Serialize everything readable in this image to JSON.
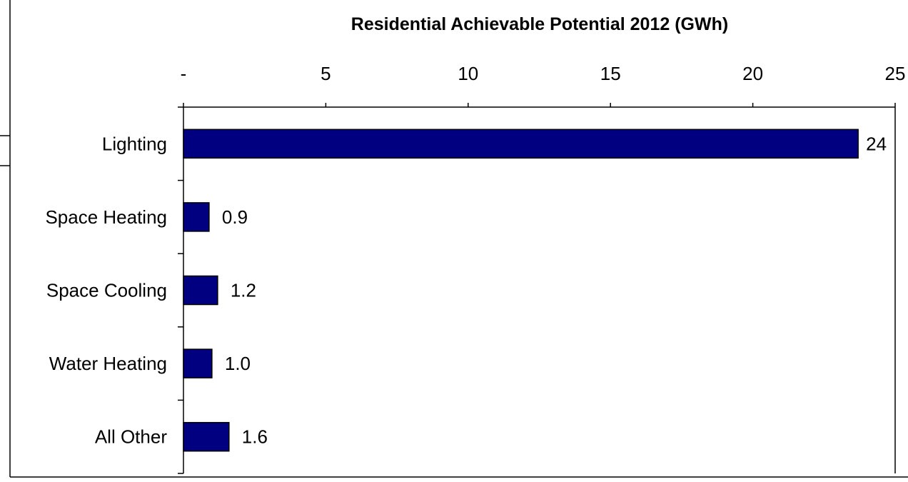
{
  "chart_data": {
    "type": "bar",
    "orientation": "horizontal",
    "title": "Residential Achievable Potential 2012 (GWh)",
    "xlabel": "",
    "ylabel": "",
    "categories": [
      "Lighting",
      "Space Heating",
      "Space Cooling",
      "Water Heating",
      "All Other"
    ],
    "values": [
      23.7,
      0.9,
      1.2,
      1.0,
      1.6
    ],
    "data_labels": [
      "24",
      "0.9",
      "1.2",
      "1.0",
      "1.6"
    ],
    "xlim": [
      0,
      25
    ],
    "x_ticks": [
      0,
      5,
      10,
      15,
      20,
      25
    ],
    "x_tick_labels": [
      "-",
      "5",
      "10",
      "15",
      "20",
      "25"
    ],
    "x_axis_position": "top",
    "grid": false,
    "legend": "none",
    "bar_color": "#000080",
    "bar_edge_color": "#000000"
  }
}
